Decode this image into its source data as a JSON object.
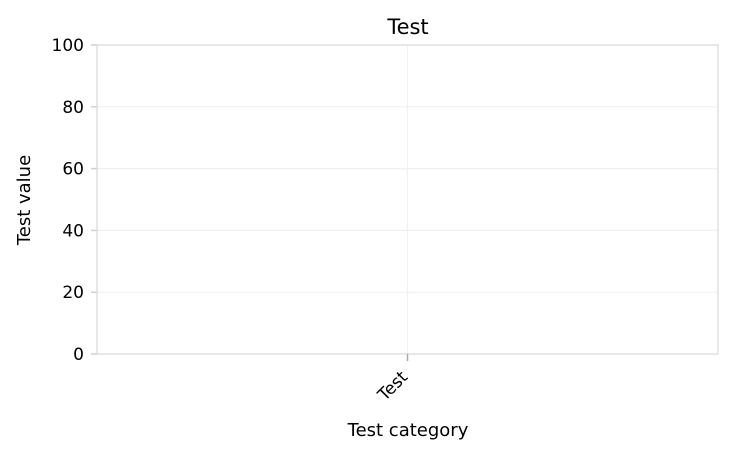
{
  "chart_data": {
    "type": "bar",
    "title": "Test",
    "xlabel": "Test category",
    "ylabel": "Test value",
    "categories": [
      "Test"
    ],
    "values": [
      0
    ],
    "ylim": [
      0,
      100
    ],
    "yticks": [
      0,
      20,
      40,
      60,
      80,
      100
    ],
    "grid": true,
    "legend": "none"
  }
}
